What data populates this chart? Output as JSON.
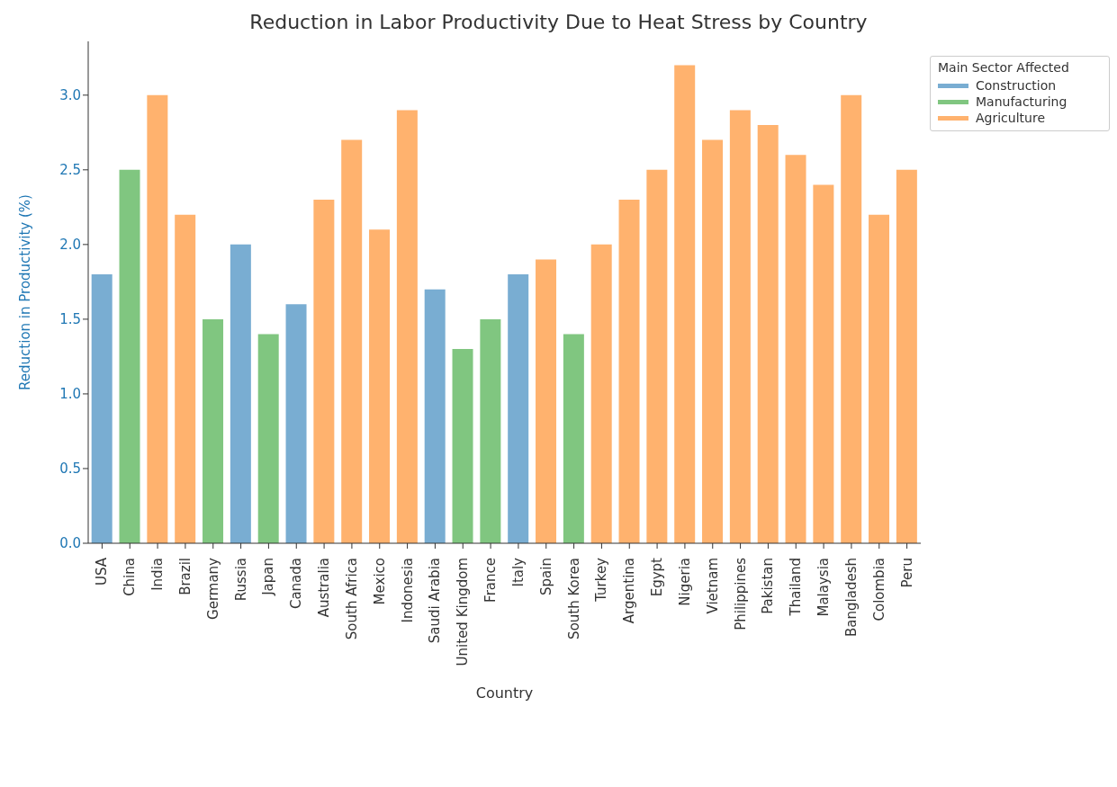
{
  "chart_data": {
    "type": "bar",
    "title": "Reduction in Labor Productivity Due to Heat Stress by Country",
    "xlabel": "Country",
    "ylabel": "Reduction in Productivity (%)",
    "legend_title": "Main Sector Affected",
    "stacked": true,
    "legend": "top right",
    "categories": [
      "USA",
      "China",
      "India",
      "Brazil",
      "Germany",
      "Russia",
      "Japan",
      "Canada",
      "Australia",
      "South Africa",
      "Mexico",
      "Indonesia",
      "Saudi Arabia",
      "United Kingdom",
      "France",
      "Italy",
      "Spain",
      "South Korea",
      "Turkey",
      "Argentina",
      "Egypt",
      "Nigeria",
      "Vietnam",
      "Philippines",
      "Pakistan",
      "Thailand",
      "Malaysia",
      "Bangladesh",
      "Colombia",
      "Peru"
    ],
    "series": [
      {
        "name": "Construction",
        "color": "#79add2",
        "values": [
          1.8,
          null,
          null,
          null,
          null,
          2.0,
          null,
          1.6,
          null,
          null,
          null,
          null,
          1.7,
          null,
          null,
          1.8,
          null,
          null,
          null,
          null,
          null,
          null,
          null,
          null,
          null,
          null,
          null,
          null,
          null,
          null
        ]
      },
      {
        "name": "Manufacturing",
        "color": "#80c680",
        "values": [
          null,
          2.5,
          null,
          null,
          1.5,
          null,
          1.4,
          null,
          null,
          null,
          null,
          null,
          null,
          1.3,
          1.5,
          null,
          null,
          1.4,
          null,
          null,
          null,
          null,
          null,
          null,
          null,
          null,
          null,
          null,
          null,
          null
        ]
      },
      {
        "name": "Agriculture",
        "color": "#ffb26e",
        "values": [
          null,
          null,
          3.0,
          2.2,
          null,
          null,
          null,
          null,
          2.3,
          2.7,
          2.1,
          2.9,
          null,
          null,
          null,
          null,
          1.9,
          null,
          2.0,
          2.3,
          2.5,
          3.2,
          2.7,
          2.9,
          2.8,
          2.6,
          2.4,
          3.0,
          2.2,
          2.5
        ]
      }
    ],
    "ylim": [
      0,
      3.36
    ],
    "yticks": [
      {
        "value": 0,
        "label": "0.0"
      },
      {
        "value": 0.5,
        "label": "0.5"
      },
      {
        "value": 1,
        "label": "1.0"
      },
      {
        "value": 1.5,
        "label": "1.5"
      },
      {
        "value": 2,
        "label": "2.0"
      },
      {
        "value": 2.5,
        "label": "2.5"
      },
      {
        "value": 3,
        "label": "3.0"
      }
    ],
    "grid": false
  }
}
